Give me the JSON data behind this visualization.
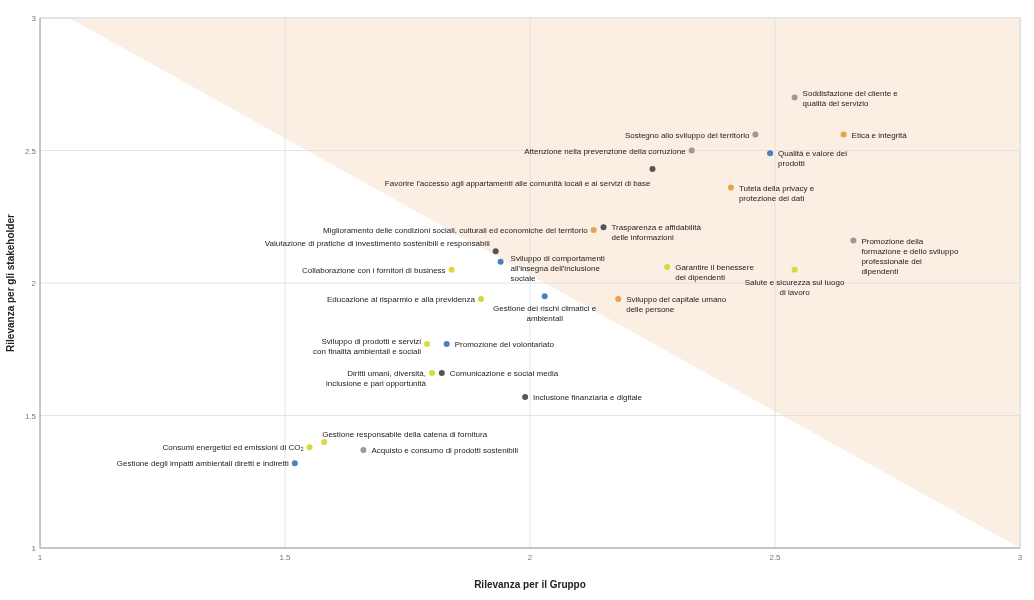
{
  "chart_data": {
    "type": "scatter",
    "xlabel": "Rilevanza per il Gruppo",
    "ylabel": "Rilevanza per gli stakeholder",
    "xlim": [
      1.0,
      3.0
    ],
    "ylim": [
      1.0,
      3.0
    ],
    "xticks": [
      1.0,
      1.5,
      2.0,
      2.5,
      3.0
    ],
    "yticks": [
      1.0,
      1.5,
      2.0,
      2.5,
      3.0
    ],
    "grid": true,
    "series": [
      {
        "type": "area",
        "color": "#fbeee2",
        "x": [
          1.06,
          3.0
        ],
        "values": [
          3.0,
          1.0
        ]
      },
      {
        "marker": "circle",
        "x": [
          2.54,
          2.64,
          2.49,
          2.46,
          2.33,
          2.25,
          2.41,
          2.13,
          2.15,
          2.66,
          2.28,
          2.54,
          1.93,
          1.94,
          1.84,
          1.9,
          2.03,
          2.18,
          1.79,
          1.83,
          1.8,
          1.82,
          1.99,
          1.58,
          1.55,
          1.52,
          1.66
        ],
        "values": [
          2.7,
          2.56,
          2.49,
          2.56,
          2.5,
          2.43,
          2.36,
          2.2,
          2.21,
          2.16,
          2.06,
          2.05,
          2.12,
          2.08,
          2.05,
          1.94,
          1.95,
          1.94,
          1.77,
          1.77,
          1.66,
          1.66,
          1.57,
          1.4,
          1.38,
          1.32,
          1.37
        ],
        "colors": [
          "#9a9a9a",
          "#e8a050",
          "#4a7fc1",
          "#9a9a9a",
          "#9a9a9a",
          "#555555",
          "#e8a050",
          "#e8a050",
          "#555555",
          "#9a9a9a",
          "#d8d840",
          "#d8d840",
          "#555555",
          "#4a7fc1",
          "#d8d840",
          "#d8d840",
          "#4a7fc1",
          "#e8a050",
          "#d8d840",
          "#4a7fc1",
          "#d8d840",
          "#555555",
          "#555555",
          "#d8d840",
          "#d8d840",
          "#4a7fc1",
          "#9a9a9a"
        ]
      }
    ],
    "annotations": [
      {
        "text": "Soddisfazione del cliente e\nqualità del servizio",
        "x": 2.54,
        "y": 2.7
      },
      {
        "text": "Etica e integrità",
        "x": 2.64,
        "y": 2.56
      },
      {
        "text": "Qualità e valore dei\nprodotti",
        "x": 2.49,
        "y": 2.49
      },
      {
        "text": "Sostegno allo sviluppo del territorio",
        "x": 2.46,
        "y": 2.56
      },
      {
        "text": "Attenzione nella prevenzione della corruzione",
        "x": 2.33,
        "y": 2.5
      },
      {
        "text": "Favorire l'accesso agli appartamenti alle comunità locali e ai servizi di base",
        "x": 2.25,
        "y": 2.43
      },
      {
        "text": "Tutela della privacy e\nprotezione dei dati",
        "x": 2.41,
        "y": 2.36
      },
      {
        "text": "Miglioramento delle condizioni sociali, culturali ed economiche del territorio",
        "x": 2.13,
        "y": 2.2
      },
      {
        "text": "Trasparenza e affidabilità\ndelle informazioni",
        "x": 2.15,
        "y": 2.21
      },
      {
        "text": "Promozione della\nformazione e dello sviluppo\nprofessionale dei\ndipendenti",
        "x": 2.66,
        "y": 2.16
      },
      {
        "text": "Garantire il benessere\ndei dipendenti",
        "x": 2.28,
        "y": 2.06
      },
      {
        "text": "Salute e sicurezza sul luogo\ndi lavoro",
        "x": 2.54,
        "y": 2.05
      },
      {
        "text": "Valutazione di pratiche di investimento sostenibili e responsabili",
        "x": 1.93,
        "y": 2.12
      },
      {
        "text": "Sviluppo di comportamenti\nall'insegna dell'inclusione\nsociale",
        "x": 1.94,
        "y": 2.08
      },
      {
        "text": "Collaborazione con i fornitori di business",
        "x": 1.84,
        "y": 2.05
      },
      {
        "text": "Educazione al risparmio e alla previdenza",
        "x": 1.9,
        "y": 1.94
      },
      {
        "text": "Gestione dei rischi climatici e\nambientali",
        "x": 2.03,
        "y": 1.95
      },
      {
        "text": "Sviluppo del capitale umano\ndelle persone",
        "x": 2.18,
        "y": 1.94
      },
      {
        "text": "Sviluppo di prodotti e servizi\ncon finalità ambientali e sociali",
        "x": 1.79,
        "y": 1.77
      },
      {
        "text": "Promozione del volontariato",
        "x": 1.83,
        "y": 1.77
      },
      {
        "text": "Diritti umani, diversità,\ninclusione e pari opportunità",
        "x": 1.8,
        "y": 1.66
      },
      {
        "text": "Comunicazione e social media",
        "x": 1.82,
        "y": 1.66
      },
      {
        "text": "Inclusione finanziaria e digitale",
        "x": 1.99,
        "y": 1.57
      },
      {
        "text": "Gestione responsabile della catena di fornitura",
        "x": 1.58,
        "y": 1.4
      },
      {
        "text": "Consumi energetici ed emissioni di CO₂",
        "x": 1.55,
        "y": 1.38
      },
      {
        "text": "Gestione degli impatti ambientali diretti e indiretti",
        "x": 1.52,
        "y": 1.32
      },
      {
        "text": "Acquisto e consumo di prodotti sostenibili",
        "x": 1.66,
        "y": 1.37
      }
    ]
  }
}
